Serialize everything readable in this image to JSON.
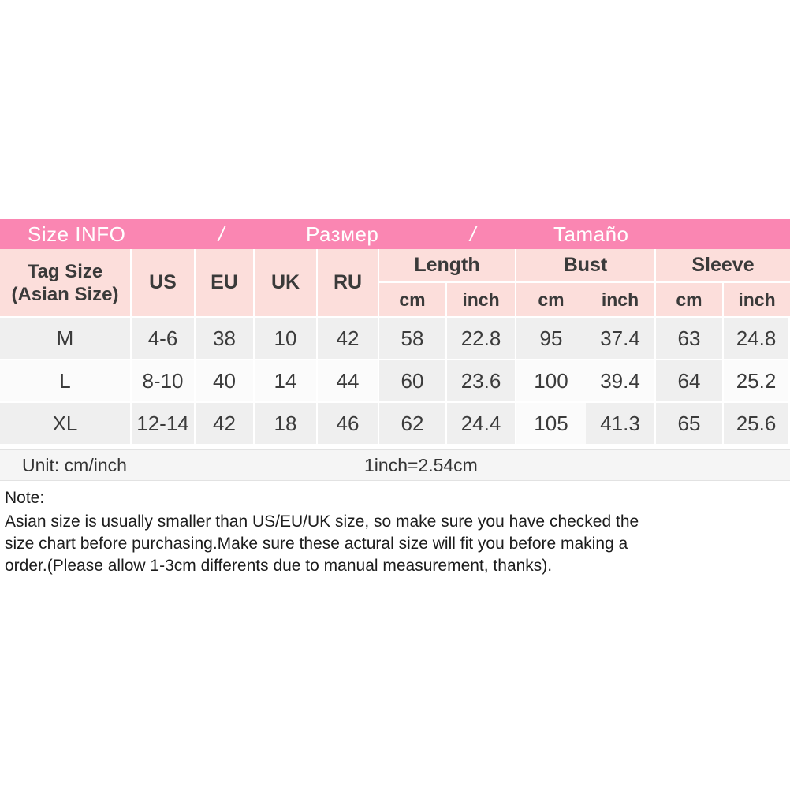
{
  "title_bar": {
    "size_info": "Size INFO",
    "separator1": "/",
    "razmer": "Размер",
    "separator2": "/",
    "tamano": "Tamaño"
  },
  "table": {
    "header": {
      "tag_size_line1": "Tag Size",
      "tag_size_line2": "(Asian Size)",
      "us": "US",
      "eu": "EU",
      "uk": "UK",
      "ru": "RU",
      "length": "Length",
      "bust": "Bust",
      "sleeve": "Sleeve",
      "cm": "cm",
      "inch": "inch"
    },
    "rows": [
      [
        "M",
        "4-6",
        "38",
        "10",
        "42",
        "58",
        "22.8",
        "95",
        "37.4",
        "63",
        "24.8"
      ],
      [
        "L",
        "8-10",
        "40",
        "14",
        "44",
        "60",
        "23.6",
        "100",
        "39.4",
        "64",
        "25.2"
      ],
      [
        "XL",
        "12-14",
        "42",
        "18",
        "46",
        "62",
        "24.4",
        "105",
        "41.3",
        "65",
        "25.6"
      ]
    ]
  },
  "footer": {
    "unit": "Unit: cm/inch",
    "conversion": "1inch=2.54cm"
  },
  "note": {
    "title": "Note:",
    "lines": [
      "Asian size is usually smaller than US/EU/UK size, so make sure you have checked the",
      "size chart before purchasing.Make sure these actural size will fit you before making a",
      "order.(Please allow 1-3cm differents due to manual measurement, thanks)."
    ]
  },
  "colors": {
    "title_bar_pink": "#fa86b2",
    "header_pink": "#fcdedb",
    "row_gray": "#efefef",
    "row_light": "#fbfbfb",
    "text_dark": "#3b3b3b"
  }
}
